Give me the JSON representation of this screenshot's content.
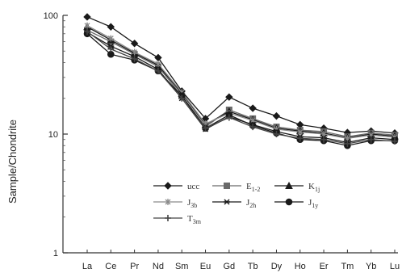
{
  "chart_data": {
    "type": "line",
    "title": "",
    "xlabel": "",
    "ylabel": "Sample/Chondrite",
    "yscale": "log",
    "ylim": [
      1,
      100
    ],
    "yticks": [
      1,
      10,
      100
    ],
    "ytick_labels": [
      "1",
      "10",
      "100"
    ],
    "grid": false,
    "legend_placement": "center",
    "categories": [
      "La",
      "Ce",
      "Pr",
      "Nd",
      "Sm",
      "Eu",
      "Gd",
      "Tb",
      "Dy",
      "Ho",
      "Er",
      "Tm",
      "Yb",
      "Lu"
    ],
    "series": [
      {
        "name": "ucc",
        "marker": "diamond",
        "color": "#1a1a1a",
        "values": [
          97,
          80,
          58,
          44,
          23,
          13.5,
          20.5,
          16.5,
          14.2,
          12,
          11.2,
          10.3,
          10.6,
          10.2
        ]
      },
      {
        "name": "E1-2",
        "marker": "square",
        "color": "#6a6a6a",
        "values": [
          75,
          60,
          47,
          37,
          21,
          11.5,
          16,
          13.5,
          11.5,
          10.8,
          10.5,
          9.5,
          10.2,
          9.8
        ]
      },
      {
        "name": "K1j",
        "marker": "triangle",
        "color": "#1a1a1a",
        "values": [
          80,
          62,
          48,
          38,
          22,
          12,
          15.5,
          13.2,
          11.2,
          10.6,
          10.2,
          9.3,
          10,
          9.6
        ]
      },
      {
        "name": "J3b",
        "marker": "x-star",
        "color": "#8a8a8a",
        "values": [
          82,
          64,
          49,
          39,
          22.5,
          12.2,
          15,
          13,
          11,
          10.4,
          10,
          9.2,
          9.8,
          9.4
        ]
      },
      {
        "name": "J2h",
        "marker": "asterisk",
        "color": "#1a1a1a",
        "values": [
          72,
          55,
          45,
          35,
          20,
          11,
          14,
          12,
          10.5,
          9.5,
          9.3,
          8.5,
          9.3,
          9
        ]
      },
      {
        "name": "J1y",
        "marker": "circle",
        "color": "#1a1a1a",
        "values": [
          70,
          47,
          42,
          34,
          21,
          11.2,
          14.5,
          11.8,
          10.2,
          9,
          8.8,
          8,
          8.8,
          8.8
        ]
      },
      {
        "name": "T3m",
        "marker": "plus",
        "color": "#444444",
        "values": [
          73,
          52,
          43,
          34,
          20,
          11.2,
          13.8,
          11.5,
          10,
          9.2,
          9,
          8.3,
          9,
          8.7
        ]
      }
    ],
    "legend": [
      {
        "label": "ucc",
        "main": "ucc",
        "sub": ""
      },
      {
        "label": "E1-2",
        "main": "E",
        "sub": "1-2"
      },
      {
        "label": "K1j",
        "main": "K",
        "sub": "1j"
      },
      {
        "label": "J3b",
        "main": "J",
        "sub": "3b"
      },
      {
        "label": "J2h",
        "main": "J",
        "sub": "2h"
      },
      {
        "label": "J1y",
        "main": "J",
        "sub": "1y"
      },
      {
        "label": "T3m",
        "main": "T",
        "sub": "3m"
      }
    ]
  }
}
